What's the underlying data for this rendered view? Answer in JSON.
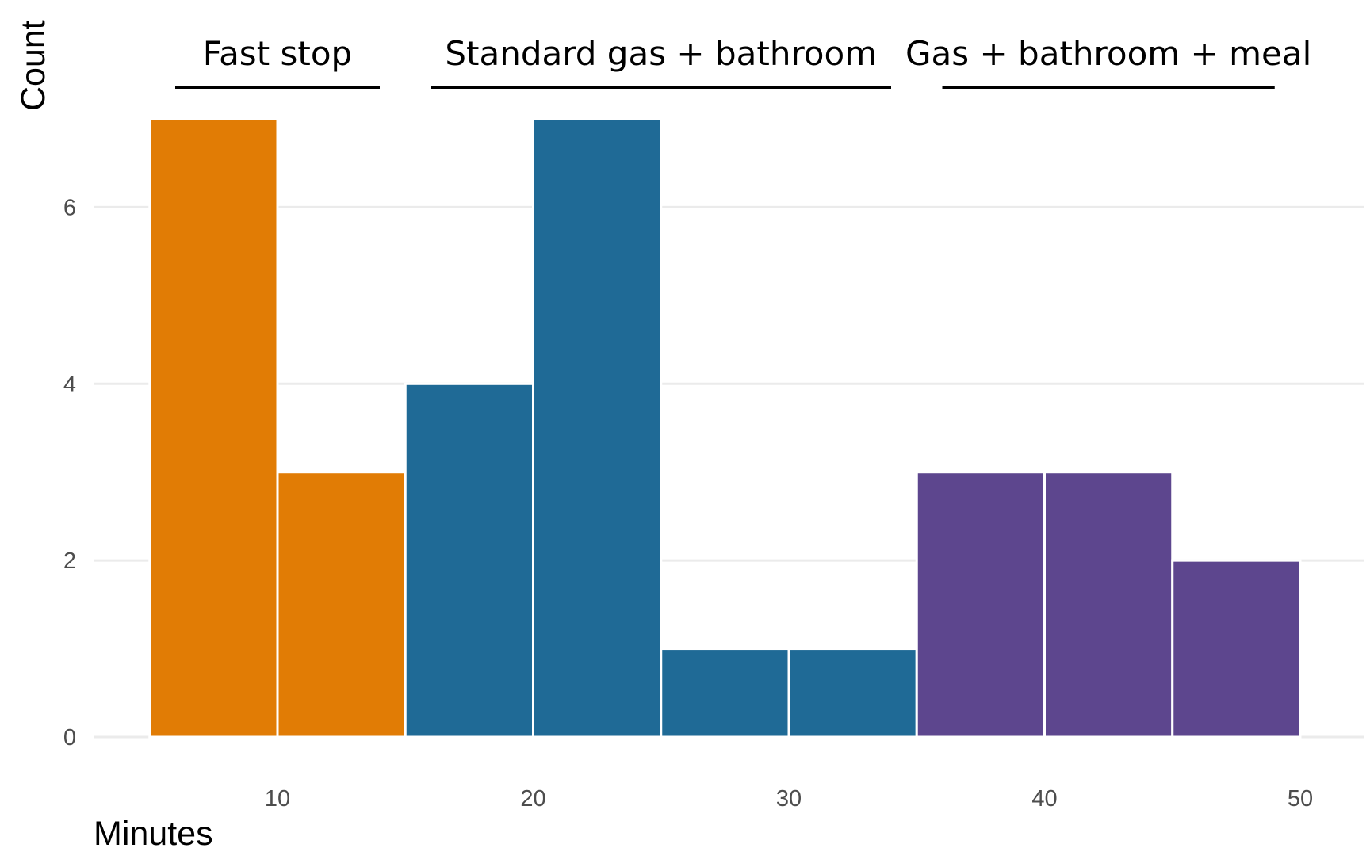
{
  "chart_data": {
    "type": "bar",
    "subtype": "histogram",
    "xlabel": "Minutes",
    "ylabel": "Count",
    "xlim": [
      3,
      52
    ],
    "ylim": [
      0,
      7
    ],
    "x_ticks": [
      10,
      20,
      30,
      40,
      50
    ],
    "y_ticks": [
      0,
      2,
      4,
      6
    ],
    "grid": "horizontal",
    "bin_width": 5,
    "bins": [
      {
        "start": 5,
        "end": 10,
        "count": 7,
        "group": "fast"
      },
      {
        "start": 10,
        "end": 15,
        "count": 3,
        "group": "fast"
      },
      {
        "start": 15,
        "end": 20,
        "count": 4,
        "group": "standard"
      },
      {
        "start": 20,
        "end": 25,
        "count": 7,
        "group": "standard"
      },
      {
        "start": 25,
        "end": 30,
        "count": 1,
        "group": "standard"
      },
      {
        "start": 30,
        "end": 35,
        "count": 1,
        "group": "standard"
      },
      {
        "start": 35,
        "end": 40,
        "count": 3,
        "group": "meal"
      },
      {
        "start": 40,
        "end": 45,
        "count": 3,
        "group": "meal"
      },
      {
        "start": 45,
        "end": 50,
        "count": 2,
        "group": "meal"
      }
    ],
    "groups": [
      {
        "id": "fast",
        "label": "Fast stop",
        "color": "#e17c05",
        "range": [
          6,
          14
        ]
      },
      {
        "id": "standard",
        "label": "Standard gas + bathroom",
        "color": "#1f6a96",
        "range": [
          16,
          34
        ]
      },
      {
        "id": "meal",
        "label": "Gas + bathroom + meal",
        "color": "#5d468e",
        "range": [
          36,
          49
        ]
      }
    ]
  }
}
